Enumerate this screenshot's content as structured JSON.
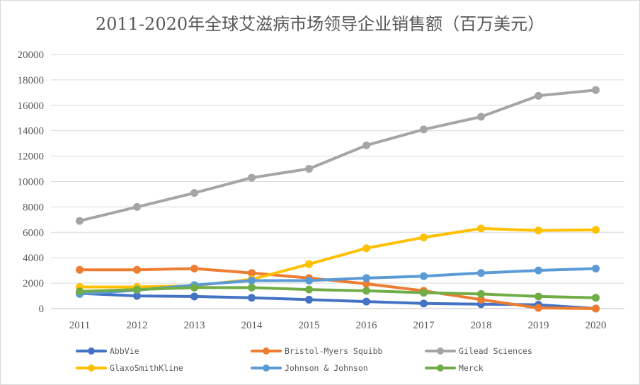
{
  "chart_data": {
    "type": "line",
    "title": "2011-2020年全球艾滋病市场领导企业销售额（百万美元）",
    "xlabel": "",
    "ylabel": "",
    "categories": [
      "2011",
      "2012",
      "2013",
      "2014",
      "2015",
      "2016",
      "2017",
      "2018",
      "2019",
      "2020"
    ],
    "ylim": [
      0,
      20000
    ],
    "yticks": [
      0,
      2000,
      4000,
      6000,
      8000,
      10000,
      12000,
      14000,
      16000,
      18000,
      20000
    ],
    "grid": true,
    "legend_position": "bottom",
    "series": [
      {
        "name": "AbbVie",
        "color": "#4472c4",
        "values": [
          1200,
          1000,
          950,
          850,
          700,
          550,
          400,
          350,
          300,
          0
        ]
      },
      {
        "name": "Bristol-Myers Squibb",
        "color": "#ed7d31",
        "values": [
          3050,
          3050,
          3150,
          2800,
          2400,
          1950,
          1400,
          700,
          50,
          0
        ]
      },
      {
        "name": "Gilead Sciences",
        "color": "#a5a5a5",
        "values": [
          6900,
          8000,
          9100,
          10300,
          11000,
          12850,
          14100,
          15100,
          16750,
          17200
        ]
      },
      {
        "name": "GlaxoSmithKline",
        "color": "#ffc000",
        "values": [
          1700,
          1700,
          1800,
          2300,
          3500,
          4750,
          5600,
          6300,
          6150,
          6200
        ]
      },
      {
        "name": "Johnson & Johnson",
        "color": "#5b9bd5",
        "values": [
          1150,
          1450,
          1850,
          2200,
          2200,
          2400,
          2550,
          2800,
          3000,
          3150
        ]
      },
      {
        "name": "Merck",
        "color": "#70ad47",
        "values": [
          1350,
          1500,
          1650,
          1650,
          1500,
          1400,
          1250,
          1150,
          950,
          850
        ]
      }
    ]
  }
}
